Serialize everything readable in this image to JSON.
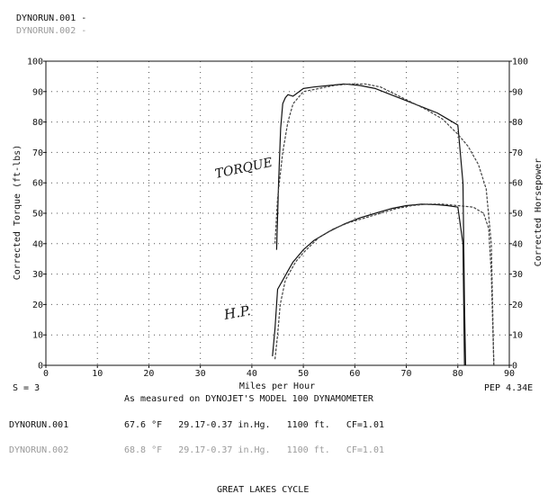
{
  "header": {
    "run1": "DYNORUN.001 -",
    "run2": "DYNORUN.002 -"
  },
  "chart_data": {
    "type": "line",
    "xlabel": "Miles per Hour",
    "ylabel_left": "Corrected Torque (ft-lbs)",
    "ylabel_right": "Corrected Horsepower",
    "xlim": [
      0,
      90
    ],
    "ylim": [
      0,
      100
    ],
    "grid": true,
    "x_ticks": [
      "0",
      "10",
      "20",
      "30",
      "40",
      "50",
      "60",
      "70",
      "80",
      "90"
    ],
    "y_ticks": [
      "0",
      "10",
      "20",
      "30",
      "40",
      "50",
      "60",
      "70",
      "80",
      "90",
      "100"
    ],
    "annotations": {
      "torque": "TORQUE",
      "hp": "H.P."
    },
    "series": [
      {
        "run": "DYNORUN.001",
        "quantity": "torque",
        "x": [
          44.8,
          45.2,
          45.6,
          46.0,
          46.5,
          47.0,
          48.0,
          50.0,
          52.0,
          55.0,
          58.0,
          61.0,
          64.0,
          67.0,
          70.0,
          73.0,
          76.0,
          78.0,
          80.0,
          81.0,
          81.3,
          81.5
        ],
        "y": [
          38,
          60,
          78,
          86,
          88,
          89,
          88.5,
          91,
          91.5,
          92,
          92.5,
          92,
          91,
          89,
          87,
          85,
          83,
          81,
          79,
          60,
          20,
          0
        ]
      },
      {
        "run": "DYNORUN.002",
        "quantity": "torque",
        "x": [
          44.5,
          45.0,
          46.0,
          47.0,
          48.0,
          50.0,
          53.0,
          56.0,
          59.0,
          62.0,
          65.0,
          68.0,
          71.0,
          74.0,
          77.0,
          80.0,
          82.0,
          84.0,
          85.5,
          86.5,
          87.0
        ],
        "y": [
          40,
          55,
          70,
          80,
          86,
          90,
          91,
          92,
          92.5,
          92.5,
          91.5,
          89,
          86.5,
          84,
          81,
          76,
          72,
          66,
          58,
          40,
          0
        ]
      },
      {
        "run": "DYNORUN.001",
        "quantity": "hp",
        "x": [
          44.0,
          44.5,
          45.0,
          46.0,
          47.0,
          48.0,
          50.0,
          52.0,
          55.0,
          58.0,
          61.0,
          64.0,
          67.0,
          70.0,
          73.0,
          76.0,
          78.0,
          80.0,
          81.0,
          81.3
        ],
        "y": [
          3,
          12,
          25,
          28,
          31,
          34,
          38,
          41,
          44,
          46.5,
          48.5,
          50,
          51.5,
          52.5,
          53,
          52.8,
          52.5,
          52,
          40,
          0
        ]
      },
      {
        "run": "DYNORUN.002",
        "quantity": "hp",
        "x": [
          44.5,
          45.0,
          45.5,
          46.5,
          47.5,
          48.5,
          50.0,
          53.0,
          56.0,
          59.0,
          62.0,
          65.0,
          68.0,
          71.0,
          74.0,
          77.0,
          80.0,
          83.0,
          85.0,
          86.0,
          86.5,
          87.0
        ],
        "y": [
          2,
          10,
          20,
          28,
          31,
          34,
          37,
          42,
          45,
          47,
          48.5,
          50,
          51.5,
          52.5,
          53,
          53,
          52.5,
          52,
          50,
          45,
          30,
          0
        ]
      }
    ]
  },
  "footer": {
    "s_label": "S = 3",
    "pep_label": "PEP 4.34E",
    "measured_text": "As measured on DYNOJET'S MODEL 100 DYNAMOMETER",
    "run1_name": "DYNORUN.001",
    "run1_details": "67.6 °F   29.17-0.37 in.Hg.   1100 ft.   CF=1.01",
    "run2_name": "DYNORUN.002",
    "run2_details": "68.8 °F   29.17-0.37 in.Hg.   1100 ft.   CF=1.01",
    "shop_name": "GREAT LAKES CYCLE"
  }
}
